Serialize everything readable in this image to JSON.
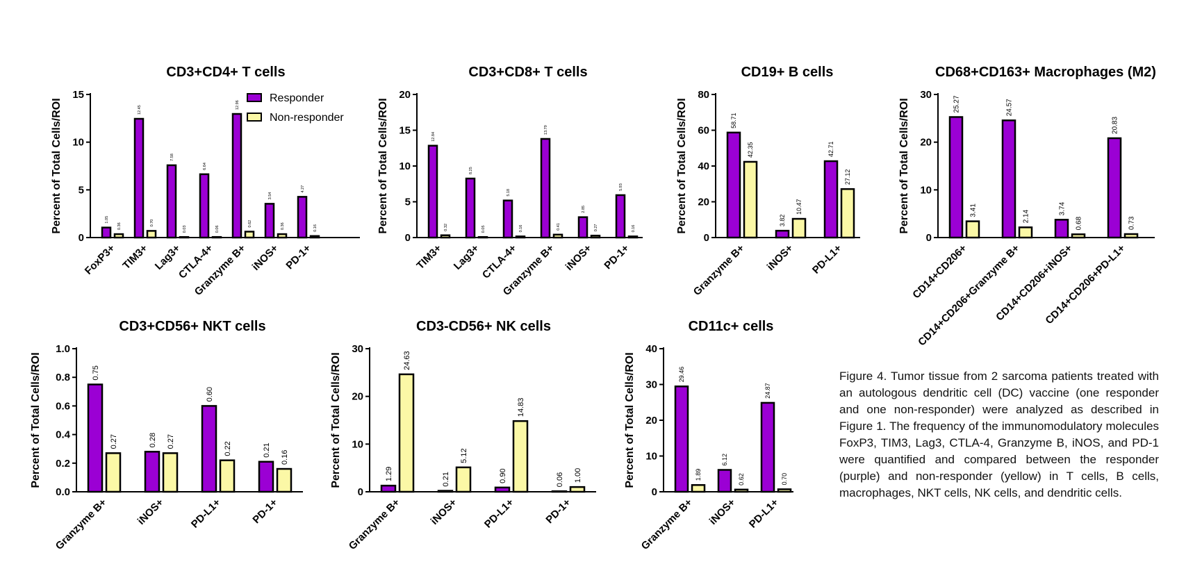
{
  "colors": {
    "responder": "#9b00d4",
    "non_responder": "#fbf8a6",
    "outline": "#000000",
    "text": "#000000"
  },
  "legend": {
    "responder": "Responder",
    "non_responder": "Non-responder"
  },
  "caption": "Figure 4. Tumor tissue from 2 sarcoma patients treated with an autologous dendritic cell (DC) vaccine (one responder and one non-responder) were analyzed as described in Figure 1.  The frequency of the immunomodulatory molecules FoxP3, TIM3, Lag3, CTLA-4, Granzyme B, iNOS, and PD-1 were quantified and compared between the responder (purple) and non-responder (yellow) in T cells, B cells, macrophages, NKT cells, NK cells, and dendritic cells.",
  "chart_data": [
    {
      "type": "bar",
      "title": "CD3+CD4+ T cells",
      "ylabel": "Percent of Total Cells/ROI",
      "ylim": [
        0,
        15
      ],
      "yticks": [
        "0",
        "5",
        "10",
        "15"
      ],
      "categories": [
        "FoxP3+",
        "TIM3+",
        "Lag3+",
        "CTLA-4+",
        "Granzyme B+",
        "iNOS+",
        "PD-1+"
      ],
      "series": [
        {
          "name": "Responder",
          "values": [
            1.05,
            12.45,
            7.58,
            6.64,
            12.96,
            3.54,
            4.27
          ],
          "labels": [
            "1.05",
            "12.45",
            "7.58",
            "6.64",
            "12.96",
            "3.54",
            "4.27"
          ]
        },
        {
          "name": "Non-responder",
          "values": [
            0.36,
            0.7,
            0.03,
            0.06,
            0.62,
            0.36,
            0.16
          ],
          "labels": [
            "0.36",
            "0.70",
            "0.03",
            "0.06",
            "0.62",
            "0.36",
            "0.16"
          ]
        }
      ],
      "legend": "top-right"
    },
    {
      "type": "bar",
      "title": "CD3+CD8+ T cells",
      "ylabel": "Percent of Total Cells/ROI",
      "ylim": [
        0,
        20
      ],
      "yticks": [
        "0",
        "5",
        "10",
        "15",
        "20"
      ],
      "categories": [
        "TIM3+",
        "Lag3+",
        "CTLA-4+",
        "Granzyme B+",
        "iNOS+",
        "PD-1+"
      ],
      "series": [
        {
          "name": "Responder",
          "values": [
            12.84,
            8.25,
            5.18,
            13.79,
            2.85,
            5.93
          ],
          "labels": [
            "12.84",
            "8.25",
            "5.18",
            "13.79",
            "2.85",
            "5.93"
          ]
        },
        {
          "name": "Non-responder",
          "values": [
            0.32,
            0.05,
            0.16,
            0.41,
            0.27,
            0.16
          ],
          "labels": [
            "0.32",
            "0.05",
            "0.16",
            "0.41",
            "0.27",
            "0.16"
          ]
        }
      ]
    },
    {
      "type": "bar",
      "title": "CD19+ B cells",
      "ylabel": "Percent of Total Cells/ROI",
      "ylim": [
        0,
        80
      ],
      "yticks": [
        "0",
        "20",
        "40",
        "60",
        "80"
      ],
      "categories": [
        "Granzyme B+",
        "iNOS+",
        "PD-L1+"
      ],
      "series": [
        {
          "name": "Responder",
          "values": [
            58.71,
            3.82,
            42.71
          ],
          "labels": [
            "58.71",
            "3.82",
            "42.71"
          ]
        },
        {
          "name": "Non-responder",
          "values": [
            42.35,
            10.47,
            27.12
          ],
          "labels": [
            "42.35",
            "10.47",
            "27.12"
          ]
        }
      ]
    },
    {
      "type": "bar",
      "title": "CD68+CD163+ Macrophages (M2)",
      "ylabel": "Percent of Total Cells/ROI",
      "ylim": [
        0,
        30
      ],
      "yticks": [
        "0",
        "10",
        "20",
        "30"
      ],
      "categories": [
        "CD14+CD206+",
        "CD14+CD206+Granzyme B+",
        "CD14+CD206+iNOS+",
        "CD14+CD206+PD-L1+"
      ],
      "series": [
        {
          "name": "Responder",
          "values": [
            25.27,
            24.57,
            3.74,
            20.83
          ],
          "labels": [
            "25.27",
            "24.57",
            "3.74",
            "20.83"
          ]
        },
        {
          "name": "Non-responder",
          "values": [
            3.41,
            2.14,
            0.68,
            0.73
          ],
          "labels": [
            "3.41",
            "2.14",
            "0.68",
            "0.73"
          ]
        }
      ]
    },
    {
      "type": "bar",
      "title": "CD3+CD56+ NKT cells",
      "ylabel": "Percent of Total Cells/ROI",
      "ylim": [
        0,
        1.0
      ],
      "yticks": [
        "0.0",
        "0.2",
        "0.4",
        "0.6",
        "0.8",
        "1.0"
      ],
      "categories": [
        "Granzyme B+",
        "iNOS+",
        "PD-L1+",
        "PD-1+"
      ],
      "series": [
        {
          "name": "Responder",
          "values": [
            0.75,
            0.28,
            0.6,
            0.21
          ],
          "labels": [
            "0.75",
            "0.28",
            "0.60",
            "0.21"
          ]
        },
        {
          "name": "Non-responder",
          "values": [
            0.27,
            0.27,
            0.22,
            0.16
          ],
          "labels": [
            "0.27",
            "0.27",
            "0.22",
            "0.16"
          ]
        }
      ]
    },
    {
      "type": "bar",
      "title": "CD3-CD56+ NK cells",
      "ylabel": "Percent of Total Cells/ROI",
      "ylim": [
        0,
        30
      ],
      "yticks": [
        "0",
        "10",
        "20",
        "30"
      ],
      "categories": [
        "Granzyme B+",
        "iNOS+",
        "PD-L1+",
        "PD-1+"
      ],
      "series": [
        {
          "name": "Responder",
          "values": [
            1.29,
            0.21,
            0.9,
            0.06
          ],
          "labels": [
            "1.29",
            "0.21",
            "0.90",
            "0.06"
          ]
        },
        {
          "name": "Non-responder",
          "values": [
            24.63,
            5.12,
            14.83,
            1.0
          ],
          "labels": [
            "24.63",
            "5.12",
            "14.83",
            "1.00"
          ]
        }
      ]
    },
    {
      "type": "bar",
      "title": "CD11c+ cells",
      "ylabel": "Percent of Total Cells/ROI",
      "ylim": [
        0,
        40
      ],
      "yticks": [
        "0",
        "10",
        "20",
        "30",
        "40"
      ],
      "categories": [
        "Granzyme B+",
        "iNOS+",
        "PD-L1+"
      ],
      "series": [
        {
          "name": "Responder",
          "values": [
            29.46,
            6.12,
            24.87
          ],
          "labels": [
            "29.46",
            "6.12",
            "24.87"
          ]
        },
        {
          "name": "Non-responder",
          "values": [
            1.89,
            0.62,
            0.7
          ],
          "labels": [
            "1.89",
            "0.62",
            "0.70"
          ]
        }
      ]
    }
  ]
}
